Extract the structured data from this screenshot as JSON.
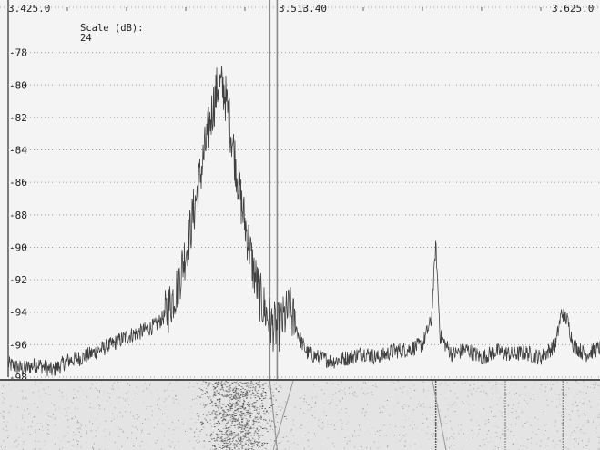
{
  "frequency_axis": {
    "left_label": "3.425.0",
    "center_label": "3.513.40",
    "right_label": "3.625.0"
  },
  "scale": {
    "label": "Scale (dB):",
    "value": "24"
  },
  "colors": {
    "trace": "#404040",
    "grid": "#9a9a9a",
    "marker": "#8a8a8a",
    "background": "#f4f4f4"
  },
  "chart_data": {
    "type": "line",
    "xlabel": "",
    "ylabel": "",
    "xlim": [
      3425.0,
      3625.0
    ],
    "ylim": [
      -98,
      -76
    ],
    "grid": true,
    "y_ticks": [
      -78,
      -80,
      -82,
      -84,
      -86,
      -88,
      -90,
      -92,
      -94,
      -96,
      -98
    ],
    "y_tick_labels": [
      "-78",
      "-80",
      "-82",
      "-84",
      "-86",
      "-88",
      "-90",
      "-92",
      "-94",
      "-96",
      "-98"
    ],
    "marker_lines": [
      3513.4,
      3515.9
    ],
    "series": [
      {
        "x": [
          3425,
          3430,
          3435,
          3440,
          3445,
          3450,
          3455,
          3460,
          3465,
          3470,
          3475,
          3478,
          3480,
          3482,
          3484,
          3486,
          3488,
          3490,
          3492,
          3494,
          3496,
          3498,
          3500,
          3502,
          3504,
          3506,
          3508,
          3510,
          3512,
          3514,
          3516,
          3518,
          3520,
          3522,
          3524,
          3526,
          3530,
          3535,
          3540,
          3545,
          3550,
          3555,
          3560,
          3565,
          3568,
          3569.5,
          3571,
          3575,
          3580,
          3585,
          3590,
          3595,
          3600,
          3605,
          3610,
          3612,
          3614,
          3616,
          3620,
          3625
        ],
        "y": [
          -97.2,
          -97.5,
          -97.2,
          -97.6,
          -97.0,
          -96.8,
          -96.4,
          -96.0,
          -95.5,
          -95.2,
          -94.8,
          -94.2,
          -93.4,
          -92.5,
          -91.0,
          -89.5,
          -87.5,
          -85.5,
          -83.5,
          -81.5,
          -80.0,
          -80.3,
          -82.5,
          -85.0,
          -87.5,
          -89.5,
          -91.5,
          -93.0,
          -94.0,
          -94.8,
          -95.0,
          -94.5,
          -93.8,
          -94.8,
          -95.8,
          -96.5,
          -96.8,
          -97.0,
          -96.8,
          -96.5,
          -96.8,
          -96.4,
          -96.3,
          -96.0,
          -94.5,
          -89.8,
          -95.5,
          -96.6,
          -96.3,
          -96.8,
          -96.4,
          -96.6,
          -96.5,
          -96.8,
          -96.0,
          -94.0,
          -94.5,
          -96.0,
          -96.6,
          -96.2
        ]
      }
    ]
  }
}
